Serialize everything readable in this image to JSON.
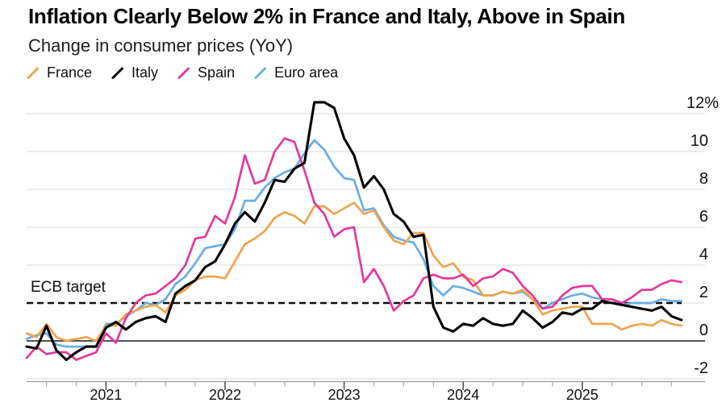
{
  "header": {
    "title": "Inflation Clearly Below 2% in France and Italy, Above in Spain",
    "subtitle": "Change in consumer prices (YoY)"
  },
  "annotations": {
    "ecb_target_label": "ECB target",
    "ecb_target_value": 2
  },
  "colors": {
    "france": "#F2A24E",
    "italy": "#000000",
    "spain": "#E1399B",
    "euro_area": "#6AAEE6",
    "gridline": "#D9D9D9",
    "zero_line": "#1A1A1A",
    "axis": "#9A9A9A",
    "tick_minor": "#ABABAB",
    "tick_year": "#555555",
    "target_line": "#111111",
    "text": "#111111"
  },
  "chart_data": {
    "type": "line",
    "title": "Inflation Clearly Below 2% in France and Italy, Above in Spain",
    "subtitle": "Change in consumer prices (YoY)",
    "x_unit": "month",
    "x_start_month": "2020-05",
    "x_end_month": "2025-11",
    "points_per_series": 67,
    "x_tick_labels": [
      "2021",
      "2022",
      "2023",
      "2024",
      "2025"
    ],
    "y_tick_labels": [
      "12%",
      "10",
      "8",
      "6",
      "4",
      "2",
      "0",
      "-2"
    ],
    "y_tick_values": [
      12,
      10,
      8,
      6,
      4,
      2,
      0,
      -2
    ],
    "ylim": [
      -2.5,
      13
    ],
    "grid": "horizontal",
    "legend_position": "top-left",
    "target_annotation": {
      "label": "ECB target",
      "value": 2,
      "style": "dashed"
    },
    "series": [
      {
        "name": "France",
        "color_key": "france",
        "values": [
          0.4,
          0.2,
          0.9,
          0.2,
          0.0,
          0.1,
          0.2,
          0.0,
          0.8,
          0.8,
          1.4,
          1.6,
          1.8,
          1.9,
          1.5,
          2.4,
          2.7,
          3.2,
          3.4,
          3.4,
          3.3,
          4.2,
          5.1,
          5.4,
          5.8,
          6.5,
          6.8,
          6.6,
          6.2,
          7.1,
          7.1,
          6.7,
          7.0,
          7.3,
          6.7,
          6.9,
          6.0,
          5.3,
          5.1,
          5.7,
          5.7,
          4.5,
          3.9,
          4.1,
          3.4,
          3.2,
          2.4,
          2.4,
          2.6,
          2.5,
          2.7,
          2.2,
          1.4,
          1.6,
          1.7,
          1.8,
          1.8,
          0.9,
          0.9,
          0.9,
          0.6,
          0.8,
          0.9,
          0.8,
          1.1,
          0.9,
          0.8
        ]
      },
      {
        "name": "Italy",
        "color_key": "italy",
        "values": [
          -0.3,
          -0.4,
          0.8,
          -0.5,
          -1.0,
          -0.6,
          -0.3,
          -0.3,
          0.7,
          1.0,
          0.6,
          1.0,
          1.2,
          1.3,
          1.0,
          2.5,
          2.9,
          3.2,
          3.9,
          4.2,
          5.1,
          6.2,
          6.8,
          6.3,
          7.3,
          8.5,
          8.4,
          9.1,
          9.4,
          12.6,
          12.6,
          12.3,
          10.7,
          9.8,
          8.1,
          8.7,
          8.0,
          6.7,
          6.3,
          5.5,
          5.6,
          1.8,
          0.7,
          0.5,
          0.9,
          0.8,
          1.2,
          0.9,
          0.8,
          0.9,
          1.6,
          1.2,
          0.7,
          1.0,
          1.5,
          1.4,
          1.7,
          1.7,
          2.1,
          2.0,
          1.9,
          1.8,
          1.7,
          1.6,
          1.8,
          1.3,
          1.1
        ]
      },
      {
        "name": "Spain",
        "color_key": "spain",
        "values": [
          -0.9,
          -0.3,
          -0.7,
          -0.6,
          -0.6,
          -1.0,
          -0.8,
          -0.6,
          0.4,
          -0.1,
          1.2,
          2.0,
          2.4,
          2.5,
          2.9,
          3.3,
          4.0,
          5.4,
          5.5,
          6.6,
          6.2,
          7.6,
          9.8,
          8.3,
          8.5,
          10.0,
          10.7,
          10.5,
          9.0,
          7.3,
          6.7,
          5.5,
          5.9,
          6.0,
          3.1,
          3.8,
          2.9,
          1.6,
          2.1,
          2.4,
          3.3,
          3.5,
          3.3,
          3.3,
          3.5,
          2.9,
          3.3,
          3.4,
          3.8,
          3.6,
          2.9,
          2.4,
          1.7,
          1.8,
          2.4,
          2.8,
          2.9,
          2.9,
          2.2,
          2.2,
          2.0,
          2.3,
          2.7,
          2.7,
          3.0,
          3.2,
          3.1
        ]
      },
      {
        "name": "Euro area",
        "color_key": "euro_area",
        "values": [
          0.1,
          0.3,
          0.4,
          -0.2,
          -0.3,
          -0.3,
          -0.3,
          -0.3,
          0.9,
          0.9,
          1.3,
          1.6,
          2.0,
          1.9,
          2.2,
          3.0,
          3.4,
          4.1,
          4.9,
          5.0,
          5.1,
          5.9,
          7.4,
          7.4,
          8.1,
          8.6,
          8.9,
          9.1,
          9.9,
          10.6,
          10.1,
          9.2,
          8.6,
          8.5,
          6.9,
          7.0,
          6.1,
          5.5,
          5.3,
          5.2,
          4.3,
          2.9,
          2.4,
          2.9,
          2.8,
          2.6,
          2.4,
          2.4,
          2.6,
          2.5,
          2.6,
          2.2,
          1.7,
          2.0,
          2.2,
          2.4,
          2.5,
          2.3,
          2.2,
          2.2,
          1.9,
          2.0,
          2.0,
          2.0,
          2.2,
          2.1,
          2.1
        ]
      }
    ]
  }
}
